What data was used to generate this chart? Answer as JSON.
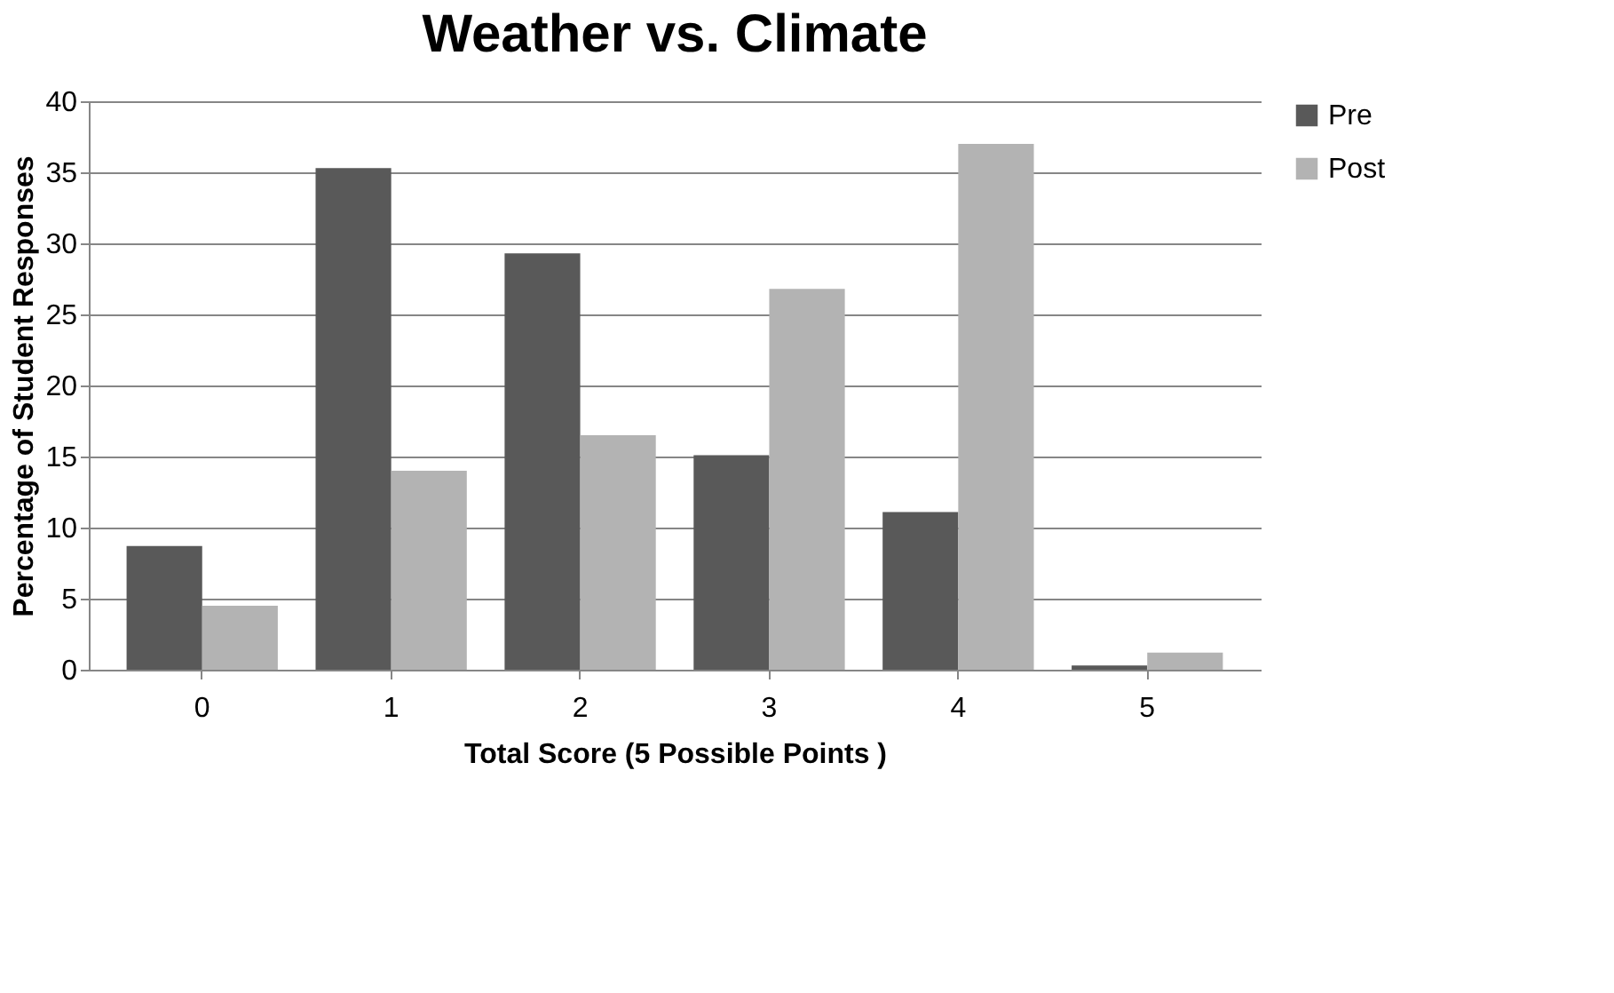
{
  "chart_data": {
    "type": "bar",
    "title": "Weather vs. Climate",
    "xlabel": "Total Score (5 Possible Points )",
    "ylabel": "Percentage of Student Responses",
    "categories": [
      "0",
      "1",
      "2",
      "3",
      "4",
      "5"
    ],
    "series": [
      {
        "name": "Pre",
        "color": "#595959",
        "values": [
          8.7,
          35.3,
          29.3,
          15.1,
          11.1,
          0.3
        ]
      },
      {
        "name": "Post",
        "color": "#b3b3b3",
        "values": [
          4.5,
          14.0,
          16.5,
          26.8,
          37.0,
          1.2
        ]
      }
    ],
    "ylim": [
      0,
      40
    ],
    "yticks": [
      0,
      5,
      10,
      15,
      20,
      25,
      30,
      35,
      40
    ],
    "grid": "y",
    "legend": "right"
  }
}
